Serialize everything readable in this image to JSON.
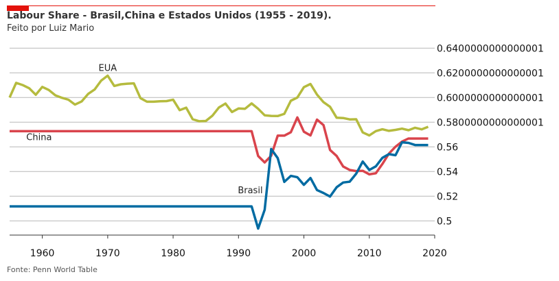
{
  "colors": {
    "accent": "#e3120b",
    "grid": "#b7b7b7",
    "text": "#333333"
  },
  "header": {
    "title": "Labour Share - Brasil,China e Estados Unidos (1955 - 2019).",
    "subtitle": "Feito por Luiz Mario"
  },
  "footer": {
    "source": "Fonte: Penn World Table"
  },
  "chart_data": {
    "type": "line",
    "xlim": [
      1955,
      2020
    ],
    "ylim": [
      0.4885,
      0.6535
    ],
    "x_ticks": [
      1960,
      1970,
      1980,
      1990,
      2000,
      2010,
      2020
    ],
    "x_tick_labels": [
      "1960",
      "1970",
      "1980",
      "1990",
      "2000",
      "2010",
      "2020"
    ],
    "y_ticks": [
      0.5,
      0.52,
      0.54,
      0.56,
      0.58,
      0.6,
      0.62,
      0.64
    ],
    "y_tick_labels": [
      "0.5",
      "0.52",
      "0.54",
      "0.56",
      "0.5800000000000001",
      "0.6000000000000001",
      "0.6200000000000001",
      "0.6400000000000001"
    ],
    "grid": true,
    "legend": "inline labels",
    "x": [
      1955,
      1956,
      1957,
      1958,
      1959,
      1960,
      1961,
      1962,
      1963,
      1964,
      1965,
      1966,
      1967,
      1968,
      1969,
      1970,
      1971,
      1972,
      1973,
      1974,
      1975,
      1976,
      1977,
      1978,
      1979,
      1980,
      1981,
      1982,
      1983,
      1984,
      1985,
      1986,
      1987,
      1988,
      1989,
      1990,
      1991,
      1992,
      1993,
      1994,
      1995,
      1996,
      1997,
      1998,
      1999,
      2000,
      2001,
      2002,
      2003,
      2004,
      2005,
      2006,
      2007,
      2008,
      2009,
      2010,
      2011,
      2012,
      2013,
      2014,
      2015,
      2016,
      2017,
      2018,
      2019
    ],
    "series": [
      {
        "name": "EUA",
        "color": "#b5bb3e",
        "values": [
          0.6,
          0.6119,
          0.6101,
          0.6075,
          0.6022,
          0.6086,
          0.6061,
          0.6018,
          0.5998,
          0.5982,
          0.5943,
          0.5968,
          0.6029,
          0.6065,
          0.6137,
          0.6177,
          0.6094,
          0.6107,
          0.6112,
          0.6115,
          0.5995,
          0.5966,
          0.5966,
          0.597,
          0.5971,
          0.5983,
          0.5898,
          0.5918,
          0.5824,
          0.5808,
          0.581,
          0.5852,
          0.5919,
          0.5951,
          0.5883,
          0.5911,
          0.5909,
          0.5952,
          0.5909,
          0.5856,
          0.5851,
          0.585,
          0.5868,
          0.5974,
          0.6,
          0.6084,
          0.611,
          0.6024,
          0.5962,
          0.5925,
          0.5836,
          0.5834,
          0.5823,
          0.5824,
          0.5717,
          0.5693,
          0.5728,
          0.5743,
          0.573,
          0.5738,
          0.5748,
          0.5735,
          0.5755,
          0.5742,
          0.5763
        ]
      },
      {
        "name": "China",
        "color": "#d9444c",
        "values": [
          0.5727,
          0.5727,
          0.5727,
          0.5727,
          0.5727,
          0.5727,
          0.5727,
          0.5727,
          0.5727,
          0.5727,
          0.5727,
          0.5727,
          0.5727,
          0.5727,
          0.5727,
          0.5727,
          0.5727,
          0.5727,
          0.5727,
          0.5727,
          0.5727,
          0.5727,
          0.5727,
          0.5727,
          0.5727,
          0.5727,
          0.5727,
          0.5727,
          0.5727,
          0.5727,
          0.5727,
          0.5727,
          0.5727,
          0.5727,
          0.5727,
          0.5727,
          0.5727,
          0.5727,
          0.5526,
          0.5474,
          0.5528,
          0.5691,
          0.5691,
          0.5719,
          0.5839,
          0.5723,
          0.5693,
          0.5821,
          0.5776,
          0.5575,
          0.5526,
          0.5441,
          0.5413,
          0.5404,
          0.5406,
          0.5377,
          0.5386,
          0.5461,
          0.5545,
          0.5601,
          0.5643,
          0.5668,
          0.5668,
          0.5668,
          0.5668
        ]
      },
      {
        "name": "Brasil",
        "color": "#006ba2",
        "values": [
          0.5118,
          0.5118,
          0.5118,
          0.5118,
          0.5118,
          0.5118,
          0.5118,
          0.5118,
          0.5118,
          0.5118,
          0.5118,
          0.5118,
          0.5118,
          0.5118,
          0.5118,
          0.5118,
          0.5118,
          0.5118,
          0.5118,
          0.5118,
          0.5118,
          0.5118,
          0.5118,
          0.5118,
          0.5118,
          0.5118,
          0.5118,
          0.5118,
          0.5118,
          0.5118,
          0.5118,
          0.5118,
          0.5118,
          0.5118,
          0.5118,
          0.5118,
          0.5118,
          0.5118,
          0.4938,
          0.509,
          0.5583,
          0.5509,
          0.5316,
          0.5365,
          0.5354,
          0.5292,
          0.5348,
          0.525,
          0.5226,
          0.5197,
          0.5273,
          0.5311,
          0.5318,
          0.5383,
          0.5481,
          0.5413,
          0.5442,
          0.5511,
          0.5541,
          0.5532,
          0.5637,
          0.5632,
          0.5615,
          0.5615,
          0.5615
        ]
      }
    ],
    "annotations": [
      {
        "text": "EUA",
        "x": 1970,
        "y": 0.6215
      },
      {
        "text": "China",
        "x": 1959.5,
        "y": 0.5655
      },
      {
        "text": "Brasil",
        "x": 1991.8,
        "y": 0.5225
      }
    ]
  }
}
